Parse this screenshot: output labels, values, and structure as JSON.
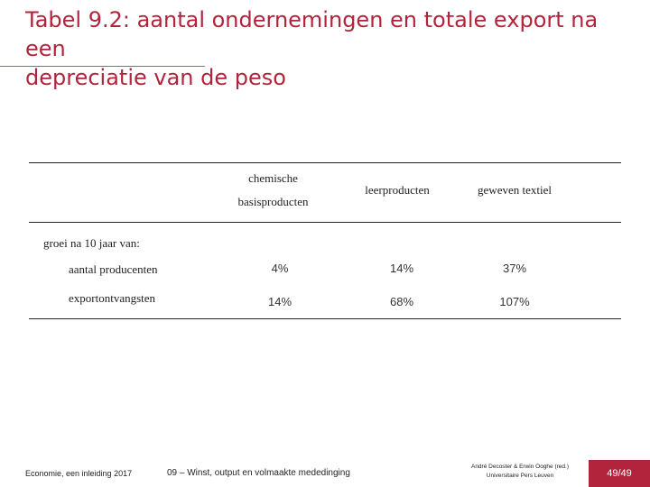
{
  "slide": {
    "title_line1": "Tabel 9.2: aantal ondernemingen en totale export na een",
    "title_line2": "depreciatie van de peso"
  },
  "table": {
    "columns": {
      "c1_line1": "chemische",
      "c1_line2": "basisproducten",
      "c2": "leerproducten",
      "c3": "geweven textiel"
    },
    "section_label": "groei na 10 jaar van:",
    "rows": [
      {
        "label": "aantal producenten",
        "values": [
          "4%",
          "14%",
          "37%"
        ]
      },
      {
        "label": "exportontvangsten",
        "values": [
          "14%",
          "68%",
          "107%"
        ]
      }
    ]
  },
  "footer": {
    "left": "Economie, een inleiding 2017",
    "middle": "09 – Winst, output en volmaakte mededinging",
    "right_line1": "André Decoster & Erwin Ooghe (red.)",
    "right_line2": "Universitaire Pers Leuven",
    "page": "49/49"
  },
  "colors": {
    "accent": "#b2243c"
  }
}
